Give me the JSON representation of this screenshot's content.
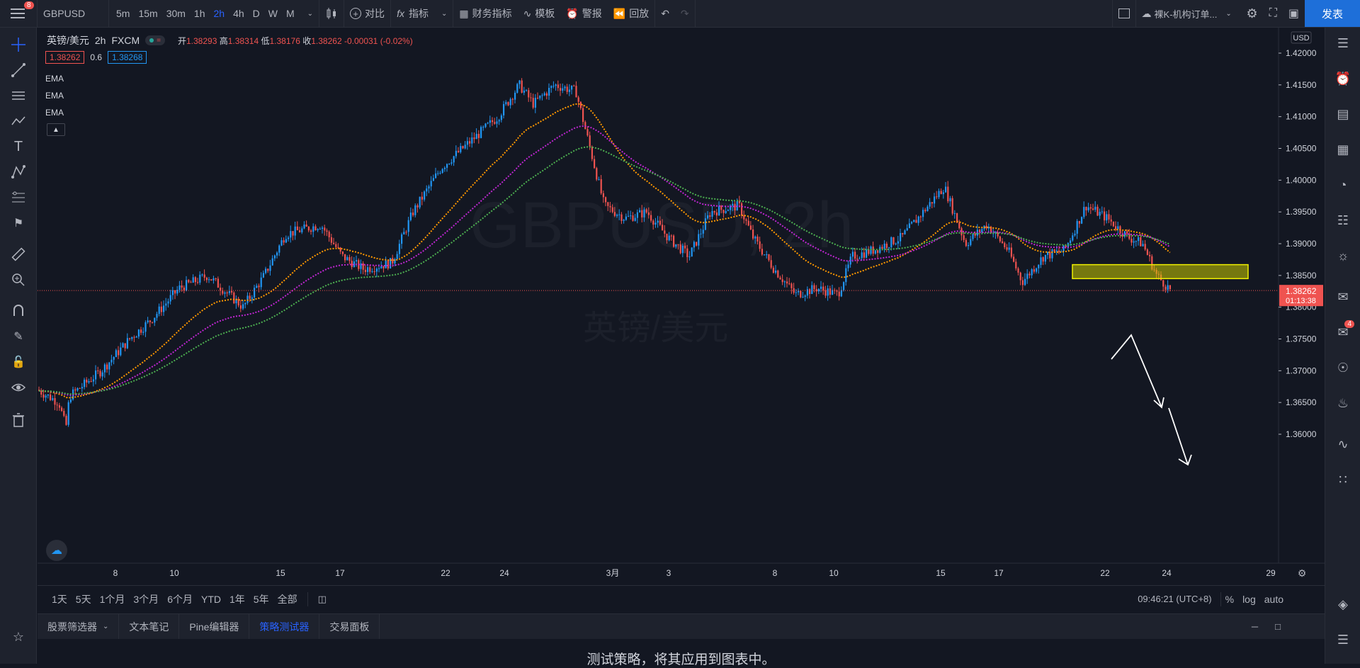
{
  "topbar": {
    "badge": "8",
    "symbol": "GBPUSD",
    "timeframes": [
      "5m",
      "15m",
      "30m",
      "1h",
      "2h",
      "4h",
      "D",
      "W",
      "M"
    ],
    "active_timeframe": "2h",
    "compare": "对比",
    "indicators": "指标",
    "financials": "财务指标",
    "templates": "模板",
    "alert": "警报",
    "replay": "回放",
    "layout_name": "裸K-机构订单...",
    "publish": "发表"
  },
  "legend": {
    "title": "英镑/美元",
    "interval": "2h",
    "exchange": "FXCM",
    "open_label": "开",
    "open": "1.38293",
    "high_label": "高",
    "high": "1.38314",
    "low_label": "低",
    "low": "1.38176",
    "close_label": "收",
    "close": "1.38262",
    "change": "-0.00031 (-0.02%)",
    "bid": "1.38262",
    "spread": "0.6",
    "ask": "1.38268",
    "ema": [
      "EMA",
      "EMA",
      "EMA"
    ]
  },
  "watermark": {
    "symbol": "GBPUSD, 2h",
    "name": "英镑/美元"
  },
  "price_axis": {
    "currency": "USD",
    "ticks": [
      "1.42000",
      "1.41500",
      "1.41000",
      "1.40500",
      "1.40000",
      "1.39500",
      "1.39000",
      "1.38500",
      "1.38000",
      "1.37500",
      "1.37000",
      "1.36500",
      "1.36000"
    ],
    "last_price": "1.38262",
    "countdown": "01:13:38"
  },
  "time_axis": {
    "ticks": [
      "8",
      "10",
      "15",
      "17",
      "22",
      "24",
      "3月",
      "3",
      "8",
      "10",
      "15",
      "17",
      "22",
      "24",
      "29"
    ]
  },
  "bottombar": {
    "ranges": [
      "1天",
      "5天",
      "1个月",
      "3个月",
      "6个月",
      "YTD",
      "1年",
      "5年",
      "全部"
    ],
    "clock": "09:46:21 (UTC+8)",
    "percent": "%",
    "log": "log",
    "auto": "auto"
  },
  "panel": {
    "tabs": [
      "股票筛选器",
      "文本笔记",
      "Pine编辑器",
      "策略测试器",
      "交易面板"
    ],
    "active_tab": "策略测试器",
    "message": "测试策略，将其应用到图表中。"
  },
  "rightbar": {
    "badge": "4"
  },
  "colors": {
    "up": "#2196f3",
    "down": "#ef5350",
    "ema_fast": "#ff9800",
    "ema_mid": "#c026d3",
    "ema_slow": "#4caf50",
    "accent": "#2962ff",
    "zone": "#d4d40a"
  }
}
